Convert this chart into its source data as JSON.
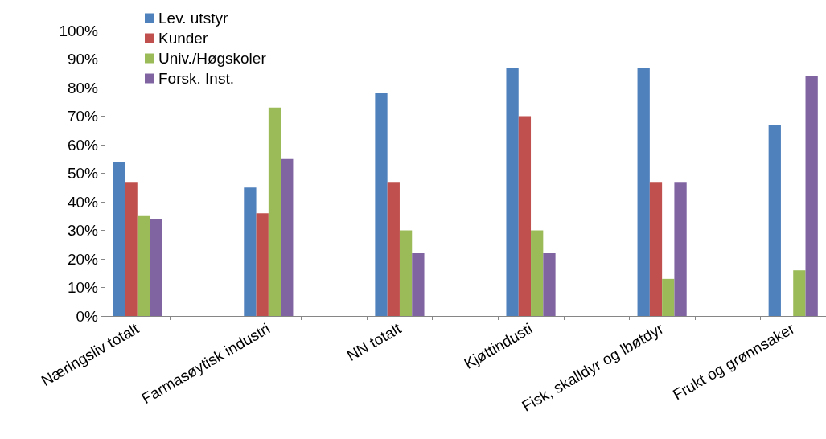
{
  "chart_data": {
    "type": "bar",
    "categories": [
      "Næringsliv totalt",
      null,
      "Farmasøytisk industri",
      null,
      "NN totalt",
      null,
      "Kjøttindusti",
      null,
      "Fisk, skalldyr og lbøtdyr",
      null,
      "Frukt og grønnsaker"
    ],
    "series": [
      {
        "name": "Lev. utstyr",
        "color": "#4f81bd",
        "values": [
          54,
          null,
          45,
          null,
          78,
          null,
          87,
          null,
          87,
          null,
          67
        ]
      },
      {
        "name": "Kunder",
        "color": "#c0504d",
        "values": [
          47,
          null,
          36,
          null,
          47,
          null,
          70,
          null,
          47,
          null,
          null
        ]
      },
      {
        "name": "Univ./Høgskoler",
        "color": "#9bbb59",
        "values": [
          35,
          null,
          73,
          null,
          30,
          null,
          30,
          null,
          13,
          null,
          16
        ]
      },
      {
        "name": "Forsk. Inst.",
        "color": "#8064a2",
        "values": [
          34,
          null,
          55,
          null,
          22,
          null,
          22,
          null,
          47,
          null,
          84
        ]
      }
    ],
    "ylim": [
      0,
      100
    ],
    "yticks": [
      {
        "value": 0,
        "label": "0%"
      },
      {
        "value": 10,
        "label": "10%"
      },
      {
        "value": 20,
        "label": "20%"
      },
      {
        "value": 30,
        "label": "30%"
      },
      {
        "value": 40,
        "label": "40%"
      },
      {
        "value": 50,
        "label": "50%"
      },
      {
        "value": 60,
        "label": "60%"
      },
      {
        "value": 70,
        "label": "70%"
      },
      {
        "value": 80,
        "label": "80%"
      },
      {
        "value": 90,
        "label": "90%"
      },
      {
        "value": 100,
        "label": "100%"
      }
    ],
    "grid": false,
    "legend": "top left"
  }
}
